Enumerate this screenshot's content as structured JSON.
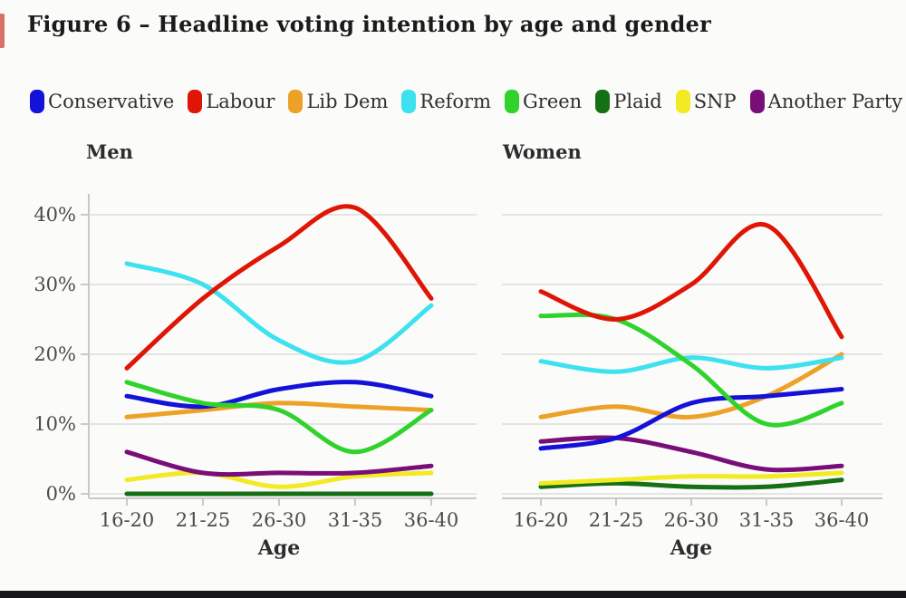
{
  "page": {
    "title": "Figure 6 – Headline voting intention by age and gender",
    "background_color": "#fbfbf9",
    "bottom_bar_color": "#17171b",
    "edge_mark_color": "#cc4437"
  },
  "legend": {
    "items": [
      {
        "label": "Conservative",
        "color": "#1412d8"
      },
      {
        "label": "Labour",
        "color": "#df1505"
      },
      {
        "label": "Lib Dem",
        "color": "#eda227"
      },
      {
        "label": "Reform",
        "color": "#3de1ef"
      },
      {
        "label": "Green",
        "color": "#2fd32c"
      },
      {
        "label": "Plaid",
        "color": "#156f15"
      },
      {
        "label": "SNP",
        "color": "#f2ea22"
      },
      {
        "label": "Another Party",
        "color": "#790e79"
      }
    ]
  },
  "chart_data": [
    {
      "type": "line",
      "title": "Men",
      "xlabel": "Age",
      "categories": [
        "16-20",
        "21-25",
        "26-30",
        "31-35",
        "36-40"
      ],
      "yticks": [
        0,
        10,
        20,
        30,
        40
      ],
      "ytick_labels": [
        "0%",
        "10%",
        "20%",
        "30%",
        "40%"
      ],
      "ylim": [
        0,
        44
      ],
      "grid": true,
      "show_y_labels": true,
      "series": [
        {
          "name": "Conservative",
          "values": [
            14,
            12.5,
            15,
            16,
            14
          ]
        },
        {
          "name": "Labour",
          "values": [
            18,
            28,
            35.5,
            41,
            28
          ]
        },
        {
          "name": "Lib Dem",
          "values": [
            11,
            12,
            13,
            12.5,
            12
          ]
        },
        {
          "name": "Reform",
          "values": [
            33,
            30,
            22,
            19,
            27
          ]
        },
        {
          "name": "Green",
          "values": [
            16,
            13,
            12,
            6,
            12
          ]
        },
        {
          "name": "Plaid",
          "values": [
            0,
            0,
            0,
            0,
            0
          ]
        },
        {
          "name": "SNP",
          "values": [
            2,
            3,
            1,
            2.5,
            3
          ]
        },
        {
          "name": "Another Party",
          "values": [
            6,
            3,
            3,
            3,
            4
          ]
        }
      ]
    },
    {
      "type": "line",
      "title": "Women",
      "xlabel": "Age",
      "categories": [
        "16-20",
        "21-25",
        "26-30",
        "31-35",
        "36-40"
      ],
      "yticks": [
        0,
        10,
        20,
        30,
        40
      ],
      "ytick_labels": [
        "0%",
        "10%",
        "20%",
        "30%",
        "40%"
      ],
      "ylim": [
        0,
        44
      ],
      "grid": true,
      "show_y_labels": false,
      "series": [
        {
          "name": "Conservative",
          "values": [
            6.5,
            8,
            13,
            14,
            15
          ]
        },
        {
          "name": "Labour",
          "values": [
            29,
            25,
            30,
            38.5,
            22.5
          ]
        },
        {
          "name": "Lib Dem",
          "values": [
            11,
            12.5,
            11,
            14,
            20
          ]
        },
        {
          "name": "Reform",
          "values": [
            19,
            17.5,
            19.5,
            18,
            19.5
          ]
        },
        {
          "name": "Green",
          "values": [
            25.5,
            25,
            18.5,
            10,
            13
          ]
        },
        {
          "name": "Plaid",
          "values": [
            1,
            1.5,
            1,
            1,
            2
          ]
        },
        {
          "name": "SNP",
          "values": [
            1.5,
            2,
            2.5,
            2.5,
            3
          ]
        },
        {
          "name": "Another Party",
          "values": [
            7.5,
            8,
            6,
            3.5,
            4
          ]
        }
      ]
    }
  ]
}
